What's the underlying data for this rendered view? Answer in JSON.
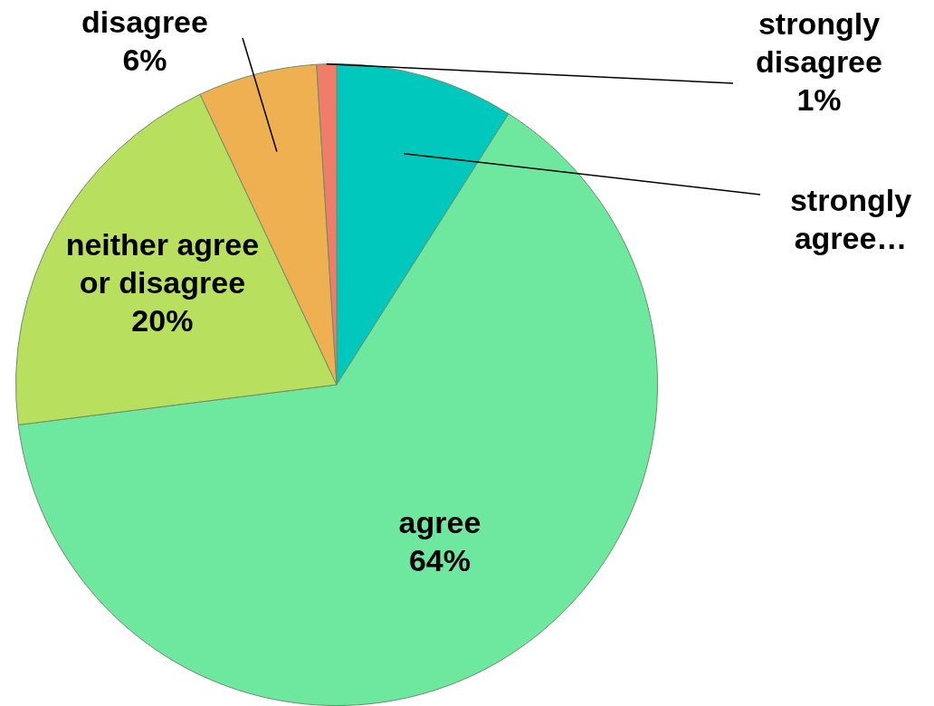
{
  "chart_data": {
    "type": "pie",
    "categories": [
      "strongly agree…",
      "agree",
      "neither agree or disagree",
      "disagree",
      "strongly disagree"
    ],
    "values": [
      9,
      64,
      20,
      6,
      1
    ],
    "colors": [
      "#00c8bc",
      "#6ee89e",
      "#b8e05e",
      "#eeb050",
      "#f07c6a"
    ],
    "value_labels": [
      null,
      "64%",
      "20%",
      "6%",
      "1%"
    ]
  }
}
